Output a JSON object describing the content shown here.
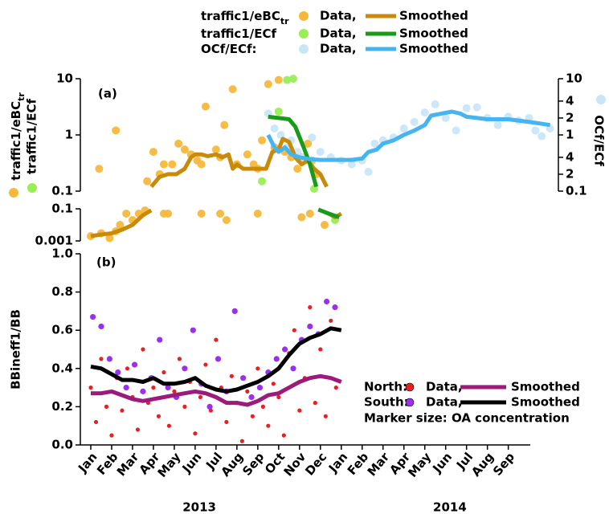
{
  "chart_data": [
    {
      "type": "scatter-line",
      "panel_label": "(a)",
      "ylog": true,
      "ylabel": [
        {
          "text": "traffic1/eBC",
          "sub": "tr"
        },
        {
          "text": "traffic1/ECf"
        }
      ],
      "y2label": "OCf/ECf",
      "ylim": [
        0.1,
        10
      ],
      "yticks": [
        0.1,
        1,
        10
      ],
      "lower_ylim": [
        0.001,
        0.1
      ],
      "lower_yticks": [
        0.001,
        0.1
      ],
      "y2lim": [
        0.1,
        10
      ],
      "y2ticks": [
        10,
        4,
        2,
        1,
        {
          "value": 0.4,
          "label": "4"
        },
        {
          "value": 0.2,
          "label": "2"
        },
        0.1
      ],
      "series": [
        {
          "label": "traffic1/eBC",
          "label_sub": "tr",
          "axis": "y",
          "data": {
            "name": "Data,",
            "color": "#f6b83c",
            "x": [
              0.0,
              0.5,
              0.9,
              1.2,
              1.4,
              1.7,
              2.0,
              2.3,
              2.6,
              3.5,
              3.7,
              5.3,
              6.2,
              6.5,
              8.0,
              10.1,
              10.5,
              11.2,
              0.4,
              1.2,
              2.7,
              3.0,
              3.3,
              3.5,
              3.9,
              4.2,
              4.5,
              4.8,
              5.1,
              5.3,
              5.5,
              6.0,
              6.2,
              6.4,
              6.8,
              7.0,
              7.5,
              7.8,
              8.0,
              8.2,
              8.5,
              8.8,
              9.0,
              9.3,
              9.6,
              9.9,
              10.1,
              10.4,
              10.6,
              10.8
            ],
            "values": [
              0.002,
              0.003,
              0.0015,
              0.004,
              0.01,
              0.05,
              0.02,
              0.05,
              0.08,
              0.05,
              0.05,
              0.05,
              0.05,
              0.02,
              0.05,
              0.03,
              0.05,
              0.01,
              0.25,
              1.2,
              0.15,
              0.5,
              0.2,
              0.3,
              0.3,
              0.7,
              0.55,
              0.45,
              0.35,
              0.3,
              3.2,
              0.55,
              0.4,
              1.5,
              6.5,
              0.3,
              0.45,
              0.3,
              0.25,
              0.8,
              8,
              0.6,
              9.5,
              0.5,
              0.4,
              0.25,
              0.4,
              0.7,
              0.35,
              0.2
            ]
          },
          "smoothed": {
            "name": "Smoothed",
            "color": "#c98a0a",
            "x": [
              0,
              0.5,
              1,
              1.5,
              2,
              2.5,
              2.9,
              2.9,
              2.9,
              3.3,
              3.7,
              4.1,
              4.5,
              4.8,
              5.0,
              5.3,
              5.6,
              6.0,
              6.3,
              6.6,
              6.8,
              7.0,
              7.3,
              7.6,
              8.0,
              8.4,
              8.7,
              9.0,
              9.2,
              9.5,
              9.8,
              10.1,
              10.4,
              10.7,
              11.0,
              11.3,
              11.3,
              11.4,
              11.7,
              12.0
            ],
            "values": [
              0.002,
              0.0025,
              0.003,
              0.005,
              0.01,
              0.04,
              0.08,
              null,
              0.12,
              0.18,
              0.2,
              0.2,
              0.25,
              0.4,
              0.45,
              0.45,
              0.42,
              0.45,
              0.4,
              0.45,
              0.25,
              0.3,
              0.25,
              0.25,
              0.25,
              0.25,
              0.5,
              0.55,
              0.85,
              0.75,
              0.4,
              0.3,
              0.35,
              0.25,
              0.2,
              0.12,
              null,
              0.05,
              0.03,
              0.05
            ]
          }
        },
        {
          "label": "traffic1/ECf",
          "axis": "y",
          "data": {
            "name": "Data,",
            "color": "#99ee55",
            "x": [
              8.2,
              9.0,
              9.4,
              9.7,
              10.7,
              11.7
            ],
            "values": [
              0.15,
              2.6,
              9.5,
              10,
              0.11,
              0.02
            ]
          },
          "smoothed": {
            "name": "Smoothed",
            "color": "#199a1a",
            "x": [
              8.5,
              9.0,
              9.5,
              9.8,
              10.2,
              10.5,
              10.8,
              10.8,
              10.9,
              11.4,
              11.9
            ],
            "values": [
              2.1,
              2.0,
              1.9,
              1.4,
              0.6,
              0.3,
              0.12,
              null,
              0.09,
              0.05,
              0.03
            ]
          }
        },
        {
          "label": "OCf/ECf:",
          "axis": "y2",
          "data": {
            "name": "Data,",
            "color": "#c8e6f8",
            "x": [
              8.5,
              8.8,
              9.1,
              9.4,
              9.6,
              9.9,
              10.2,
              10.6,
              11.0,
              11.5,
              12.0,
              12.5,
              13.0,
              13.3,
              13.6,
              14.0,
              14.5,
              15.0,
              15.5,
              16.0,
              16.5,
              17.0,
              17.5,
              18.0,
              18.5,
              19.0,
              19.5,
              20.0,
              20.5,
              21.0,
              21.3,
              21.6,
              22.0
            ],
            "values": [
              2.4,
              1.3,
              1.0,
              0.6,
              0.8,
              0.5,
              0.4,
              0.9,
              0.5,
              0.4,
              0.35,
              0.3,
              0.35,
              0.22,
              0.7,
              0.8,
              0.9,
              1.3,
              1.7,
              2.5,
              3.5,
              2.0,
              1.2,
              3.0,
              3.1,
              2.0,
              1.5,
              2.1,
              1.8,
              2.0,
              1.2,
              0.95,
              1.3
            ]
          },
          "smoothed": {
            "name": "Smoothed",
            "color": "#45b4f0",
            "x": [
              8.5,
              8.8,
              9.0,
              9.3,
              9.6,
              10.0,
              10.5,
              11,
              11.5,
              12,
              12.5,
              13,
              13.3,
              13.7,
              14,
              14.5,
              15,
              15.5,
              16,
              16.3,
              16.8,
              17.3,
              17.7,
              18,
              18.5,
              19,
              19.5,
              20,
              20.5,
              21,
              21.5,
              22
            ],
            "values": [
              1.0,
              0.6,
              0.5,
              0.6,
              0.45,
              0.4,
              0.37,
              0.36,
              0.36,
              0.36,
              0.36,
              0.38,
              0.5,
              0.55,
              0.7,
              0.8,
              1.0,
              1.2,
              1.5,
              2.2,
              2.4,
              2.6,
              2.4,
              2.1,
              2.0,
              1.9,
              1.9,
              1.9,
              1.8,
              1.7,
              1.6,
              1.5
            ]
          }
        }
      ]
    },
    {
      "type": "scatter-line",
      "panel_label": "(b)",
      "ylabel": "BBineff1/BB",
      "ylim": [
        0,
        1
      ],
      "yticks": [
        {
          "value": 0,
          "label": "0.0"
        },
        {
          "value": 0.2,
          "label": "0.2"
        },
        {
          "value": 0.4,
          "label": "0.4"
        },
        {
          "value": 0.6,
          "label": "0.6"
        },
        {
          "value": 0.8,
          "label": "0.8"
        },
        {
          "value": 1,
          "label": "1.0"
        }
      ],
      "xlim": [
        -0.5,
        22.4
      ],
      "xticks": [
        {
          "value": 0,
          "label": "Jan"
        },
        {
          "value": 1,
          "label": "Feb"
        },
        {
          "value": 2,
          "label": "Mar"
        },
        {
          "value": 3,
          "label": "Apr"
        },
        {
          "value": 4,
          "label": "May"
        },
        {
          "value": 5,
          "label": "Jun"
        },
        {
          "value": 6,
          "label": "Jul"
        },
        {
          "value": 7,
          "label": "Aug"
        },
        {
          "value": 8,
          "label": "Sep"
        },
        {
          "value": 9,
          "label": "Oct"
        },
        {
          "value": 10,
          "label": "Nov"
        },
        {
          "value": 11,
          "label": "Dec"
        },
        {
          "value": 12,
          "label": "Jan"
        },
        {
          "value": 13,
          "label": "Feb"
        },
        {
          "value": 14,
          "label": "Mar"
        },
        {
          "value": 15,
          "label": "Apr"
        },
        {
          "value": 16,
          "label": "May"
        },
        {
          "value": 17,
          "label": "Jun"
        },
        {
          "value": 18,
          "label": "Jul"
        },
        {
          "value": 19,
          "label": "Aug"
        },
        {
          "value": 20,
          "label": "Sep"
        }
      ],
      "years": [
        "2013",
        "2014"
      ],
      "marker_size_note": "Marker size: OA concentration",
      "series": [
        {
          "label": "North:",
          "data": {
            "name": "Data,",
            "color": "#e82020",
            "x": [
              0,
              0.25,
              0.5,
              0.75,
              1,
              1.25,
              1.5,
              1.75,
              2,
              2.25,
              2.5,
              2.75,
              3,
              3.25,
              3.5,
              3.75,
              4,
              4.25,
              4.5,
              4.75,
              5,
              5.25,
              5.5,
              5.75,
              6,
              6.25,
              6.5,
              6.75,
              7,
              7.25,
              7.5,
              7.75,
              8,
              8.25,
              8.5,
              8.75,
              9,
              9.25,
              9.5,
              9.75,
              10,
              10.25,
              10.5,
              10.75,
              11,
              11.25,
              11.5,
              11.75
            ],
            "values": [
              0.3,
              0.12,
              0.45,
              0.2,
              0.05,
              0.35,
              0.18,
              0.4,
              0.25,
              0.08,
              0.5,
              0.22,
              0.3,
              0.15,
              0.38,
              0.1,
              0.28,
              0.45,
              0.2,
              0.33,
              0.06,
              0.25,
              0.42,
              0.18,
              0.55,
              0.3,
              0.12,
              0.36,
              0.22,
              0.02,
              0.28,
              0.15,
              0.4,
              0.2,
              0.1,
              0.32,
              0.25,
              0.05,
              0.48,
              0.6,
              0.18,
              0.35,
              0.72,
              0.22,
              0.5,
              0.15,
              0.65,
              0.3
            ]
          },
          "smoothed": {
            "name": "Smoothed",
            "color": "#9b1a7c",
            "x": [
              0,
              0.5,
              1,
              1.5,
              2,
              2.5,
              3,
              3.5,
              4,
              4.5,
              5,
              5.5,
              6,
              6.5,
              7,
              7.5,
              8,
              8.5,
              9,
              9.5,
              10,
              10.5,
              11,
              11.5,
              12
            ],
            "values": [
              0.27,
              0.27,
              0.28,
              0.26,
              0.24,
              0.23,
              0.24,
              0.25,
              0.26,
              0.27,
              0.28,
              0.27,
              0.25,
              0.22,
              0.22,
              0.21,
              0.23,
              0.26,
              0.27,
              0.3,
              0.33,
              0.35,
              0.36,
              0.35,
              0.33
            ]
          }
        },
        {
          "label": "South:",
          "data": {
            "name": "Data,",
            "color": "#9b2ff0",
            "x": [
              0.1,
              0.5,
              0.9,
              1.3,
              1.7,
              2.1,
              2.5,
              2.9,
              3.3,
              3.7,
              4.1,
              4.5,
              4.9,
              5.3,
              5.7,
              6.1,
              6.5,
              6.9,
              7.3,
              7.7,
              8.1,
              8.5,
              8.9,
              9.3,
              9.7,
              10.1,
              10.5,
              10.9,
              11.3,
              11.7
            ],
            "values": [
              0.67,
              0.62,
              0.45,
              0.38,
              0.3,
              0.42,
              0.28,
              0.35,
              0.55,
              0.3,
              0.25,
              0.4,
              0.6,
              0.32,
              0.2,
              0.45,
              0.28,
              0.7,
              0.35,
              0.25,
              0.3,
              0.38,
              0.45,
              0.5,
              0.4,
              0.55,
              0.62,
              0.58,
              0.75,
              0.72
            ]
          },
          "smoothed": {
            "name": "Smoothed",
            "color": "#000000",
            "x": [
              0,
              0.5,
              1,
              1.5,
              2,
              2.5,
              3,
              3.5,
              4,
              4.5,
              5,
              5.5,
              6,
              6.5,
              7,
              7.5,
              8,
              8.5,
              9,
              9.5,
              10,
              10.5,
              11,
              11.5,
              12
            ],
            "values": [
              0.41,
              0.4,
              0.37,
              0.34,
              0.34,
              0.33,
              0.35,
              0.32,
              0.32,
              0.33,
              0.35,
              0.31,
              0.29,
              0.28,
              0.29,
              0.31,
              0.33,
              0.36,
              0.4,
              0.47,
              0.53,
              0.56,
              0.58,
              0.61,
              0.6
            ]
          }
        }
      ]
    }
  ]
}
